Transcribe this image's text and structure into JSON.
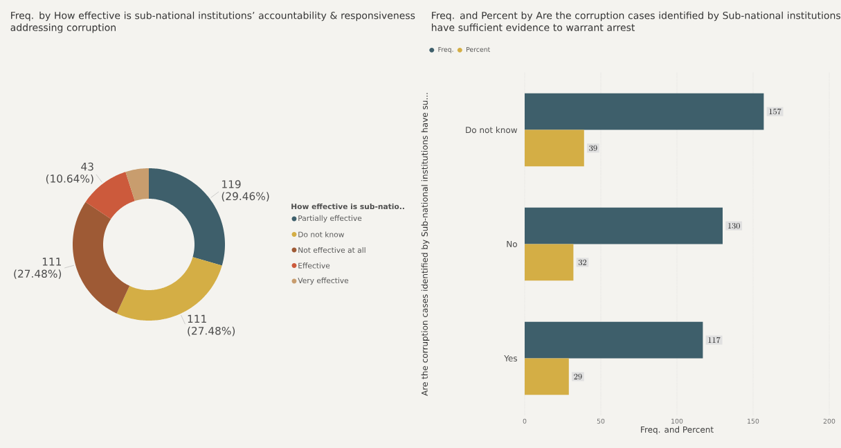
{
  "chart_data": [
    {
      "type": "donut",
      "title": "Freq. by How effective is sub-national institutions’ accountability & responsiveness addressing corruption",
      "legend_title": "How effective is sub-natio..",
      "legend": "right",
      "categories": [
        "Partially effective",
        "Do not know",
        "Not effective at all",
        "Effective",
        "Very effective"
      ],
      "values": [
        119,
        111,
        111,
        43,
        20
      ],
      "value_labels": [
        "119 (29.46%)",
        "111 (27.48%)",
        "111 (27.48%)",
        "43 (10.64%)",
        null
      ],
      "colors": [
        "#3e5f6b",
        "#d4ae45",
        "#9e5a35",
        "#cc5a3c",
        "#c89d6e"
      ]
    },
    {
      "type": "bar",
      "orientation": "horizontal",
      "title": "Freq. and Percent by Are the corruption cases identified by Sub-national institutions have sufficient evidence to warrant arrest",
      "xlabel": "Freq. and Percent",
      "ylabel": "Are the corruption cases identified by Sub-national institutions have su...",
      "legend": "top left",
      "grid": "x",
      "data_labels": true,
      "categories": [
        "Do not know",
        "No",
        "Yes"
      ],
      "series": [
        {
          "name": "Freq.",
          "color": "#3e5f6b",
          "values": [
            157,
            130,
            117
          ]
        },
        {
          "name": "Percent",
          "color": "#d4ae45",
          "values": [
            39,
            32,
            29
          ]
        }
      ],
      "xlim": [
        0,
        200
      ],
      "xticks": [
        0,
        50,
        100,
        150,
        200
      ]
    }
  ]
}
